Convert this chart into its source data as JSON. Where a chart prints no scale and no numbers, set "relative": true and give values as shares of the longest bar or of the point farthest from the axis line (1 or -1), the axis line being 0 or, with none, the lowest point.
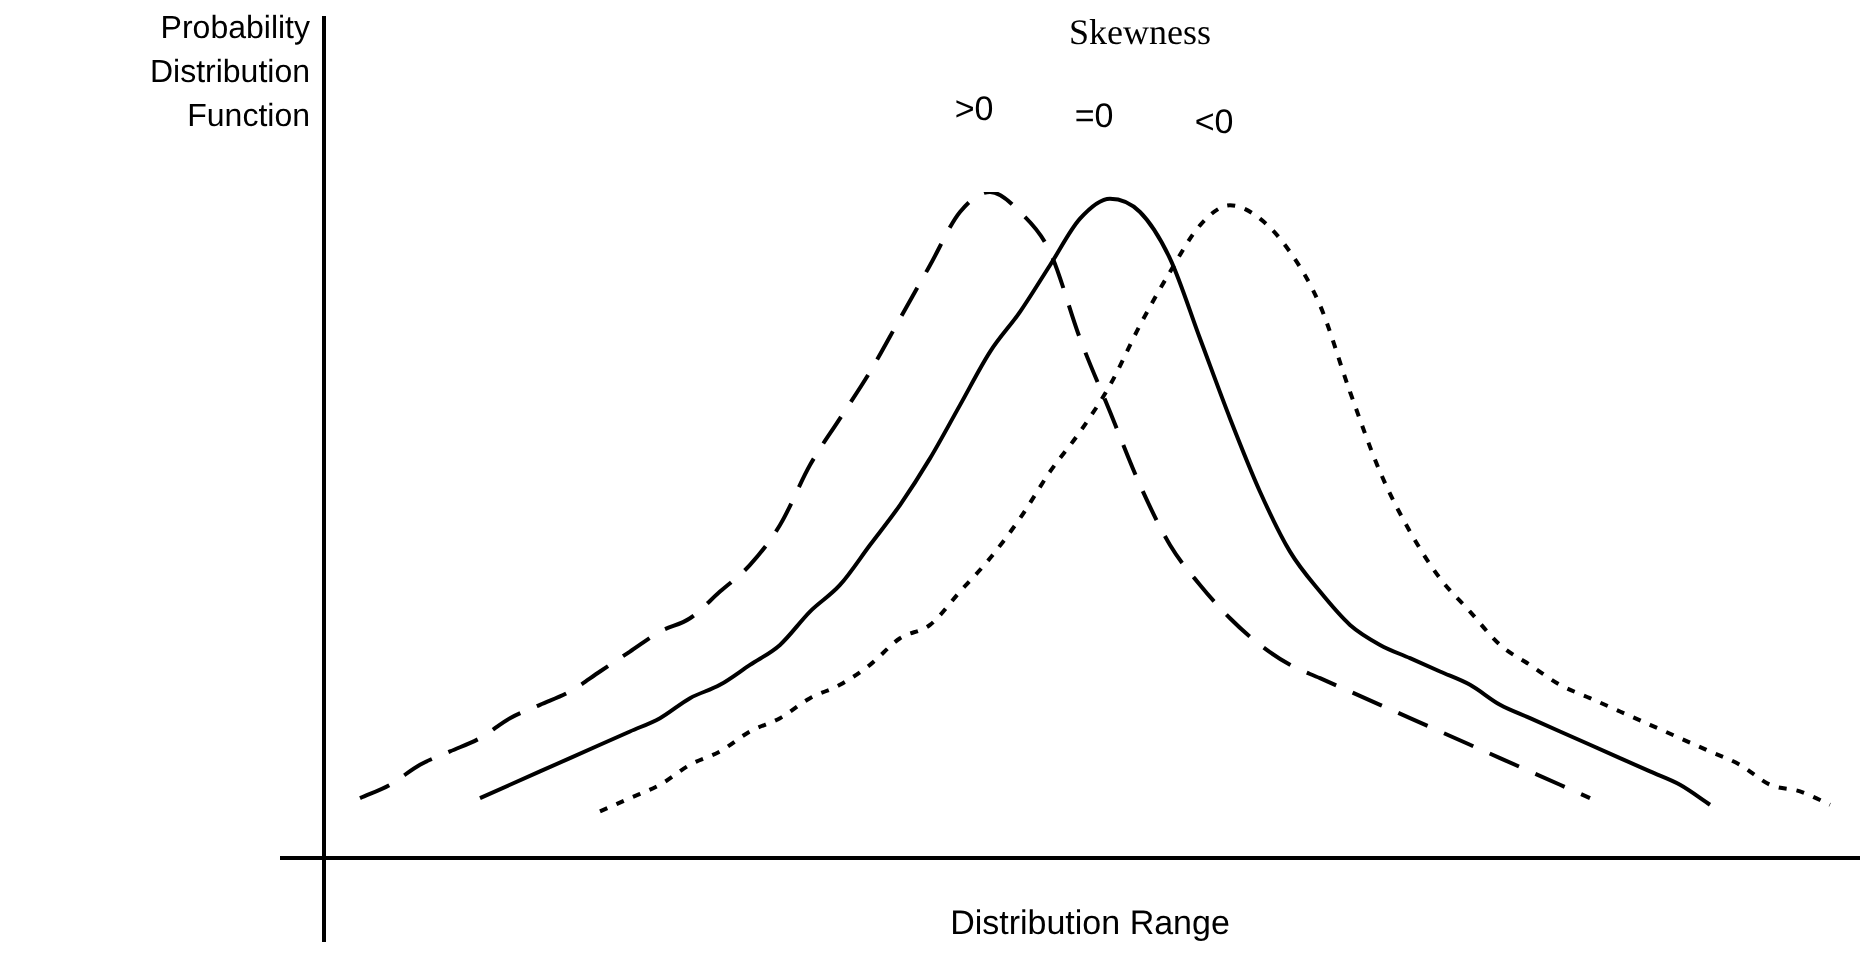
{
  "chart_data": {
    "type": "line",
    "title": "Skewness",
    "xlabel": "Distribution Range",
    "ylabel": "Probability Distribution Function",
    "relative": true,
    "legend": false,
    "marker": "none",
    "categories": [
      null,
      null,
      null,
      null,
      null,
      null,
      null,
      null,
      null,
      null,
      null,
      null,
      null,
      null,
      null,
      null,
      null,
      null,
      null,
      null,
      null,
      null,
      null,
      null,
      null,
      null,
      null,
      null,
      null,
      null,
      null,
      null,
      null,
      null,
      null,
      null,
      null,
      null,
      null,
      null,
      null,
      null,
      null,
      null,
      null,
      null,
      null,
      null,
      null,
      null
    ],
    "series": [
      {
        "name": ">0",
        "color": "#000000",
        "line_style": "dashed",
        "values": [
          0.09,
          0.11,
          0.14,
          0.16,
          0.18,
          0.21,
          0.23,
          0.25,
          0.28,
          0.31,
          0.34,
          0.36,
          0.4,
          0.44,
          0.5,
          0.59,
          0.66,
          0.73,
          0.81,
          0.89,
          0.97,
          1,
          0.97,
          0.91,
          0.78,
          0.67,
          0.56,
          0.47,
          0.41,
          0.36,
          0.32,
          0.29,
          0.27,
          0.25,
          0.23,
          0.21,
          0.19,
          0.17,
          0.15,
          0.13,
          0.11,
          0.09,
          null,
          null,
          null,
          null,
          null,
          null,
          null,
          null
        ]
      },
      {
        "name": "=0",
        "color": "#000000",
        "line_style": "solid",
        "values": [
          null,
          null,
          null,
          null,
          0.09,
          0.11,
          0.13,
          0.15,
          0.17,
          0.19,
          0.21,
          0.24,
          0.26,
          0.29,
          0.32,
          0.37,
          0.41,
          0.47,
          0.53,
          0.6,
          0.68,
          0.76,
          0.82,
          0.89,
          0.96,
          0.99,
          0.97,
          0.9,
          0.78,
          0.66,
          0.55,
          0.46,
          0.4,
          0.35,
          0.32,
          0.3,
          0.28,
          0.26,
          0.23,
          0.21,
          0.19,
          0.17,
          0.15,
          0.13,
          0.11,
          0.08,
          null,
          null,
          null,
          null
        ]
      },
      {
        "name": "<0",
        "color": "#000000",
        "line_style": "dotted",
        "values": [
          null,
          null,
          null,
          null,
          null,
          null,
          null,
          null,
          0.07,
          0.09,
          0.11,
          0.14,
          0.16,
          0.19,
          0.21,
          0.24,
          0.26,
          0.29,
          0.33,
          0.35,
          0.4,
          0.45,
          0.51,
          0.58,
          0.64,
          0.71,
          0.8,
          0.88,
          0.95,
          0.98,
          0.96,
          0.91,
          0.83,
          0.7,
          0.58,
          0.49,
          0.42,
          0.37,
          0.32,
          0.29,
          0.26,
          0.24,
          0.22,
          0.2,
          0.18,
          0.16,
          0.14,
          0.11,
          0.1,
          0.08
        ]
      }
    ]
  }
}
